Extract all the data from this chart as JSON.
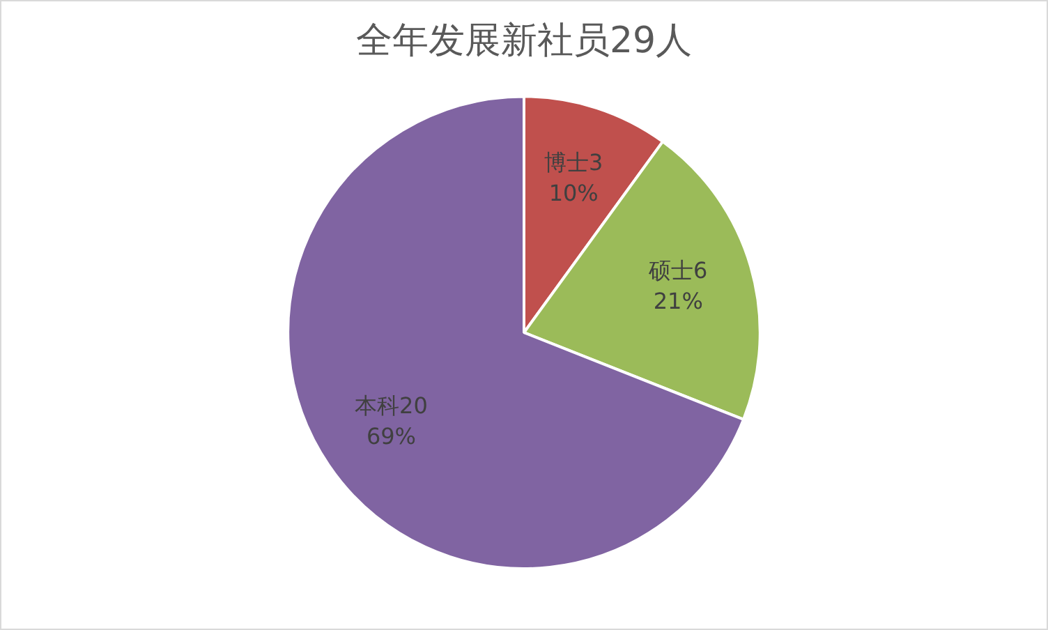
{
  "chart_data": {
    "type": "pie",
    "title": "全年发展新社员29人",
    "categories": [
      "博士3",
      "硕士6",
      "本科20"
    ],
    "values": [
      10,
      21,
      69
    ],
    "colors": [
      "#c0504d",
      "#9bbb59",
      "#8064a2"
    ],
    "value_labels": [
      "10%",
      "21%",
      "69%"
    ],
    "legend": false
  }
}
